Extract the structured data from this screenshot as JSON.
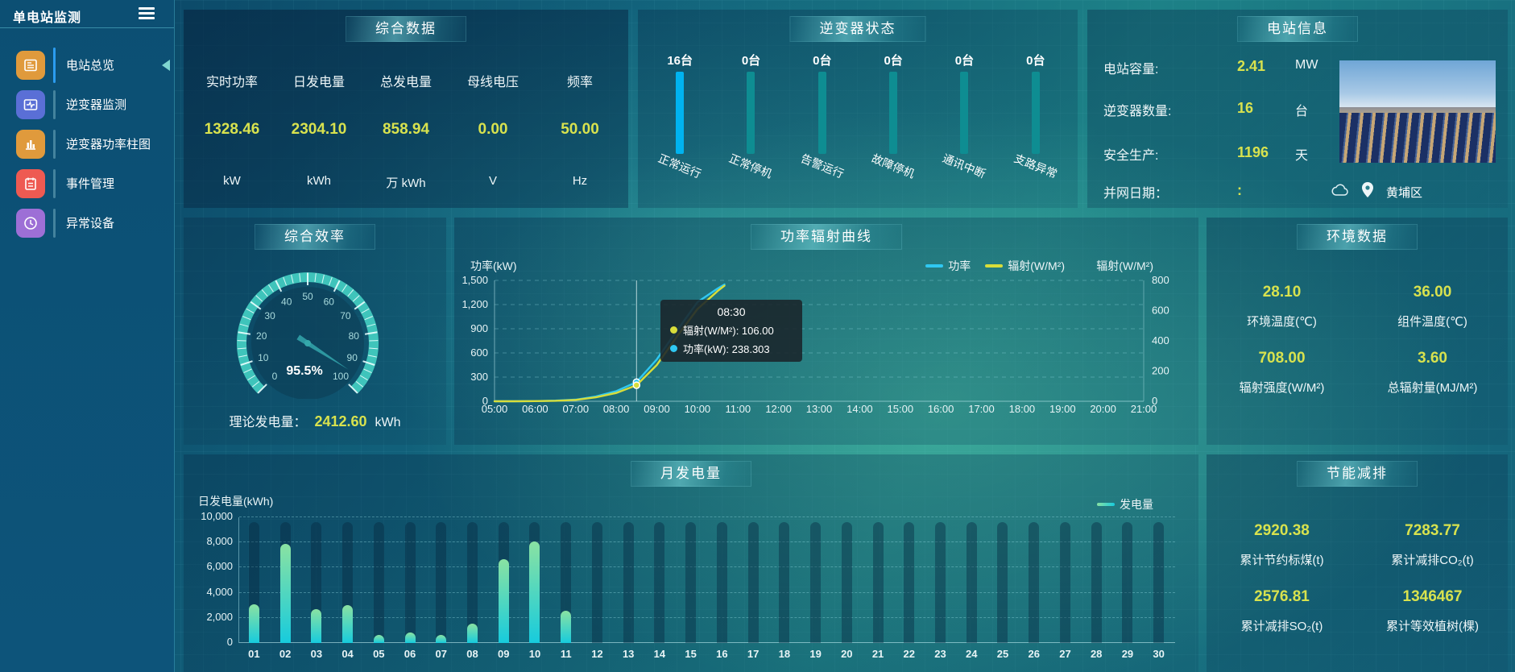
{
  "app": {
    "title": "单电站监测",
    "menu_icon": "hamburger-icon",
    "collapse_icon": "collapse-left-icon"
  },
  "sidebar": {
    "items": [
      {
        "label": "电站总览",
        "icon": "overview-doc-icon",
        "color": "#e09a3c",
        "active": true
      },
      {
        "label": "逆变器监测",
        "icon": "inverter-monitor-icon",
        "color": "#5a6fd6",
        "active": false
      },
      {
        "label": "逆变器功率柱图",
        "icon": "power-bars-icon",
        "color": "#e09a3c",
        "active": false
      },
      {
        "label": "事件管理",
        "icon": "event-icon",
        "color": "#ee5a52",
        "active": false
      },
      {
        "label": "异常设备",
        "icon": "abnormal-device-icon",
        "color": "#9d6fd6",
        "active": false
      }
    ]
  },
  "panels": {
    "summary": {
      "title": "综合数据",
      "metrics": [
        {
          "label": "实时功率",
          "value": "1328.46",
          "unit": "kW"
        },
        {
          "label": "日发电量",
          "value": "2304.10",
          "unit": "kWh"
        },
        {
          "label": "总发电量",
          "value": "858.94",
          "unit": "万 kWh"
        },
        {
          "label": "母线电压",
          "value": "0.00",
          "unit": "V"
        },
        {
          "label": "频率",
          "value": "50.00",
          "unit": "Hz"
        }
      ]
    },
    "inverter_status": {
      "title": "逆变器状态",
      "items": [
        {
          "count": "16台",
          "label": "正常运行",
          "color": "#00b3f0"
        },
        {
          "count": "0台",
          "label": "正常停机",
          "color": "#0e8d92"
        },
        {
          "count": "0台",
          "label": "告警运行",
          "color": "#0e8d92"
        },
        {
          "count": "0台",
          "label": "故障停机",
          "color": "#0e8d92"
        },
        {
          "count": "0台",
          "label": "通讯中断",
          "color": "#0e8d92"
        },
        {
          "count": "0台",
          "label": "支路异常",
          "color": "#0e8d92"
        }
      ]
    },
    "station_info": {
      "title": "电站信息",
      "rows": [
        {
          "label": "电站容量:",
          "value": "2.41",
          "unit": "MW"
        },
        {
          "label": "逆变器数量:",
          "value": "16",
          "unit": "台"
        },
        {
          "label": "安全生产:",
          "value": "1196",
          "unit": "天"
        },
        {
          "label": "并网日期：",
          "value": ":",
          "unit": ""
        }
      ],
      "photo": "solar-farm-photo",
      "weather_icon": "cloud-icon",
      "pin_icon": "location-pin-icon",
      "location": "黄埔区"
    },
    "efficiency": {
      "title": "综合效率",
      "value_text": "95.5%",
      "theory_label": "理论发电量：",
      "theory_value": "2412.60",
      "theory_unit": "kWh"
    },
    "power_radiation": {
      "title": "功率辐射曲线",
      "left_axis_label": "功率(kW)",
      "right_axis_label": "辐射(W/M²)",
      "legend": [
        {
          "label": "功率",
          "color": "#2fc8f2"
        },
        {
          "label": "辐射(W/M²)",
          "color": "#d8dd3a"
        }
      ],
      "tooltip": {
        "time": "08:30",
        "rows": [
          {
            "name": "辐射(W/M²)",
            "value": "106.00",
            "color": "#d8dd3a"
          },
          {
            "name": "功率(kW)",
            "value": "238.303",
            "color": "#2fc8f2"
          }
        ]
      }
    },
    "environment": {
      "title": "环境数据",
      "metrics": [
        {
          "value": "28.10",
          "label": "环境温度(℃)"
        },
        {
          "value": "36.00",
          "label": "组件温度(℃)"
        },
        {
          "value": "708.00",
          "label": "辐射强度(W/M²)"
        },
        {
          "value": "3.60",
          "label": "总辐射量(MJ/M²)"
        }
      ]
    },
    "monthly": {
      "title": "月发电量",
      "ylabel": "日发电量(kWh)",
      "legend_label": "发电量"
    },
    "energy_saving": {
      "title": "节能减排",
      "metrics": [
        {
          "value": "2920.38",
          "label": "累计节约标煤(t)"
        },
        {
          "value": "7283.77",
          "label": "累计减排CO₂(t)"
        },
        {
          "value": "2576.81",
          "label": "累计减排SO₂(t)"
        },
        {
          "value": "1346467",
          "label": "累计等效植树(棵)"
        }
      ]
    }
  },
  "chart_data": [
    {
      "type": "bar",
      "title": "逆变器状态",
      "categories": [
        "正常运行",
        "正常停机",
        "告警运行",
        "故障停机",
        "通讯中断",
        "支路异常"
      ],
      "values": [
        16,
        0,
        0,
        0,
        0,
        0
      ],
      "unit": "台"
    },
    {
      "type": "gauge",
      "title": "综合效率",
      "value": 95.5,
      "min": 0,
      "max": 100,
      "unit": "%",
      "tick_labels": [
        "0",
        "10",
        "20",
        "30",
        "40",
        "50",
        "60",
        "70",
        "80",
        "90",
        "100"
      ],
      "color": "#3fc4bb"
    },
    {
      "type": "line",
      "title": "功率辐射曲线",
      "x": [
        "05:00",
        "06:00",
        "07:00",
        "08:00",
        "09:00",
        "10:00",
        "11:00",
        "12:00",
        "13:00",
        "14:00",
        "15:00",
        "16:00",
        "17:00",
        "18:00",
        "19:00",
        "20:00",
        "21:00"
      ],
      "left_axis": {
        "label": "功率(kW)",
        "min": 0,
        "max": 1500,
        "tick_labels": [
          "0",
          "300",
          "600",
          "900",
          "1,200",
          "1,500"
        ]
      },
      "right_axis": {
        "label": "辐射(W/M²)",
        "min": 0,
        "max": 800,
        "tick_labels": [
          "0",
          "200",
          "400",
          "600",
          "800"
        ]
      },
      "crosshair_time": "08:30",
      "series": [
        {
          "name": "功率",
          "axis": "left",
          "color": "#2fc8f2",
          "points": [
            [
              "05:00",
              0
            ],
            [
              "05:30",
              0
            ],
            [
              "06:00",
              2
            ],
            [
              "06:30",
              8
            ],
            [
              "07:00",
              20
            ],
            [
              "07:30",
              60
            ],
            [
              "08:00",
              125
            ],
            [
              "08:30",
              238.3
            ],
            [
              "09:00",
              520
            ],
            [
              "09:30",
              880
            ],
            [
              "10:00",
              1230
            ],
            [
              "10:30",
              1400
            ],
            [
              "10:40",
              1450
            ]
          ]
        },
        {
          "name": "辐射(W/M²)",
          "axis": "right",
          "color": "#d8dd3a",
          "points": [
            [
              "05:00",
              0
            ],
            [
              "05:30",
              0
            ],
            [
              "06:00",
              1
            ],
            [
              "06:30",
              3
            ],
            [
              "07:00",
              9
            ],
            [
              "07:30",
              26
            ],
            [
              "08:00",
              55
            ],
            [
              "08:30",
              106
            ],
            [
              "09:00",
              240
            ],
            [
              "09:30",
              430
            ],
            [
              "10:00",
              610
            ],
            [
              "10:30",
              730
            ],
            [
              "10:40",
              765
            ]
          ]
        }
      ]
    },
    {
      "type": "bar",
      "title": "月发电量",
      "xlabel": "",
      "ylabel": "日发电量(kWh)",
      "legend": "发电量",
      "ylim": [
        0,
        10000
      ],
      "ytick_labels": [
        "0",
        "2,000",
        "4,000",
        "6,000",
        "8,000",
        "10,000"
      ],
      "categories": [
        "01",
        "02",
        "03",
        "04",
        "05",
        "06",
        "07",
        "08",
        "09",
        "10",
        "11",
        "12",
        "13",
        "14",
        "15",
        "16",
        "17",
        "18",
        "19",
        "20",
        "21",
        "22",
        "23",
        "24",
        "25",
        "26",
        "27",
        "28",
        "29",
        "30"
      ],
      "values": [
        3100,
        7900,
        2700,
        3000,
        650,
        850,
        650,
        1550,
        6700,
        8100,
        2550,
        0,
        0,
        0,
        0,
        0,
        0,
        0,
        0,
        0,
        0,
        0,
        0,
        0,
        0,
        0,
        0,
        0,
        0,
        0
      ]
    }
  ]
}
